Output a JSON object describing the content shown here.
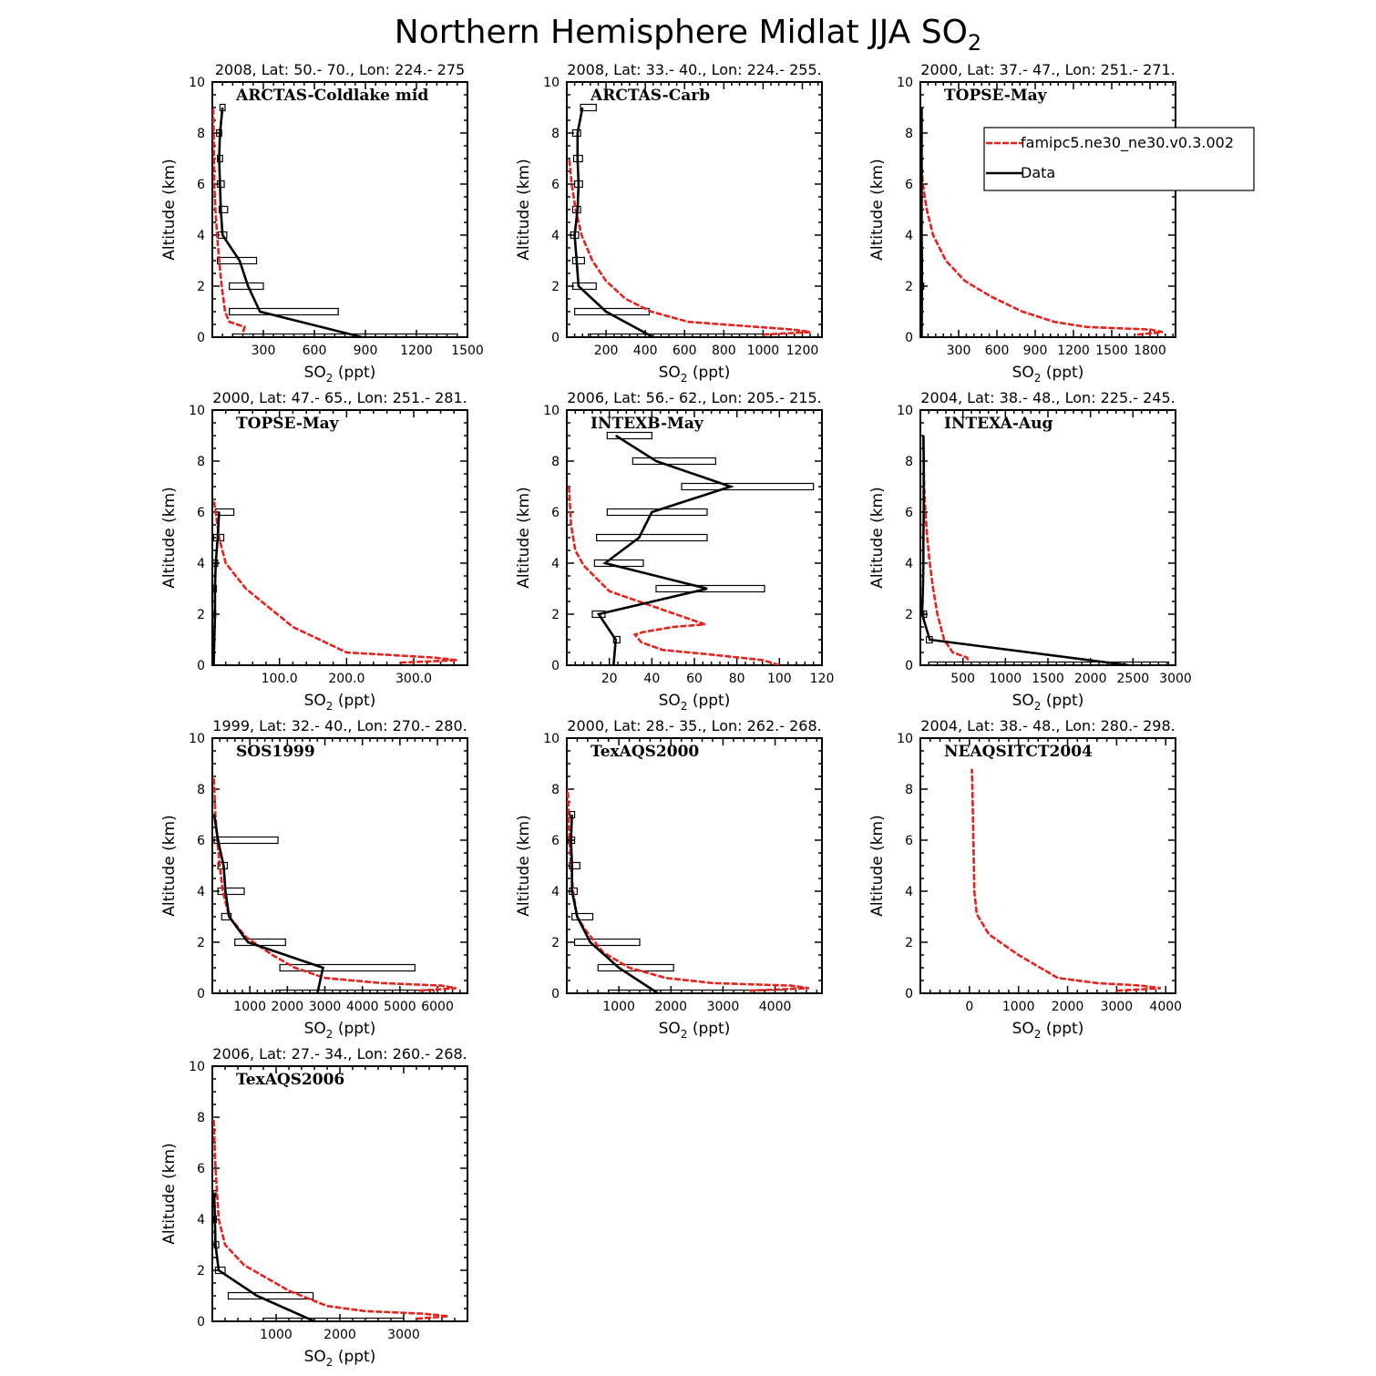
{
  "figure": {
    "title": "Northern Hemisphere Midlat JJA SO",
    "title_subscript": "2"
  },
  "legend": {
    "entries": [
      {
        "label": "famipc5.ne30_ne30.v0.3.002",
        "color": "#e8221b",
        "style": "dashed"
      },
      {
        "label": "Data",
        "color": "#000000",
        "style": "solid"
      }
    ]
  },
  "axes_text": {
    "ylabel": "Altitude (km)",
    "xlabel_main": "SO",
    "xlabel_sub": "2",
    "xlabel_tail": " (ppt)"
  },
  "colors": {
    "model": "#e8221b",
    "data": "#000000"
  },
  "chart_data": [
    {
      "type": "line",
      "subtitle": "2008, Lat:  50.- 70., Lon: 224.- 275",
      "campaign": "ARCTAS-Coldlake mid",
      "xlim": [
        0,
        1500
      ],
      "xticks": [
        300,
        600,
        900,
        1200,
        1500
      ],
      "xtick_labels": [
        "300",
        "600",
        "900",
        "1200",
        "1500"
      ],
      "ylim": [
        0,
        10
      ],
      "yticks": [
        0,
        2,
        4,
        6,
        8,
        10
      ],
      "model": {
        "x": [
          180,
          190,
          100,
          75,
          55,
          40,
          28,
          18,
          12,
          8,
          5
        ],
        "y": [
          0.2,
          0.4,
          0.6,
          1.0,
          2.0,
          3.0,
          4.0,
          5.0,
          6.0,
          8.0,
          9.0
        ]
      },
      "data": {
        "x": [
          880,
          280,
          210,
          160,
          60,
          50,
          45,
          40,
          45,
          60
        ],
        "y": [
          0,
          1,
          2,
          3,
          4,
          5,
          6,
          7,
          8,
          9
        ]
      },
      "boxes": [
        {
          "y": 0,
          "lo": 120,
          "hi": 1440
        },
        {
          "y": 1,
          "lo": 100,
          "hi": 740
        },
        {
          "y": 2,
          "lo": 100,
          "hi": 300
        },
        {
          "y": 3,
          "lo": 30,
          "hi": 260
        },
        {
          "y": 4,
          "lo": 35,
          "hi": 85
        },
        {
          "y": 5,
          "lo": 40,
          "hi": 90
        },
        {
          "y": 6,
          "lo": 30,
          "hi": 70
        },
        {
          "y": 7,
          "lo": 30,
          "hi": 60
        },
        {
          "y": 8,
          "lo": 25,
          "hi": 55
        },
        {
          "y": 9,
          "lo": 45,
          "hi": 75
        }
      ]
    },
    {
      "type": "line",
      "subtitle": "2008, Lat:  33.- 40., Lon: 224.- 255.",
      "campaign": "ARCTAS-Carb",
      "xlim": [
        0,
        1300
      ],
      "xticks": [
        200,
        400,
        600,
        800,
        1000,
        1200
      ],
      "xtick_labels": [
        "200",
        "400",
        "600",
        "800",
        "1000",
        "1200"
      ],
      "ylim": [
        0,
        10
      ],
      "yticks": [
        0,
        2,
        4,
        6,
        8,
        10
      ],
      "model": {
        "x": [
          1000,
          1240,
          1150,
          620,
          430,
          300,
          200,
          130,
          75,
          45,
          25,
          12
        ],
        "y": [
          0.1,
          0.2,
          0.3,
          0.6,
          1.0,
          1.5,
          2.2,
          3.0,
          4.0,
          5.0,
          6.0,
          7.0
        ]
      },
      "data": {
        "x": [
          440,
          200,
          60,
          50,
          40,
          55,
          60,
          55,
          55,
          80
        ],
        "y": [
          0,
          1,
          2,
          3,
          4,
          5,
          6,
          7,
          8,
          9
        ]
      },
      "boxes": [
        {
          "y": 0,
          "lo": 110,
          "hi": 1000
        },
        {
          "y": 1,
          "lo": 40,
          "hi": 420
        },
        {
          "y": 2,
          "lo": 30,
          "hi": 150
        },
        {
          "y": 3,
          "lo": 30,
          "hi": 90
        },
        {
          "y": 4,
          "lo": 20,
          "hi": 60
        },
        {
          "y": 5,
          "lo": 30,
          "hi": 70
        },
        {
          "y": 6,
          "lo": 40,
          "hi": 80
        },
        {
          "y": 7,
          "lo": 35,
          "hi": 80
        },
        {
          "y": 8,
          "lo": 30,
          "hi": 70
        },
        {
          "y": 9,
          "lo": 70,
          "hi": 150
        }
      ]
    },
    {
      "type": "line",
      "subtitle": "2000, Lat: 37.- 47., Lon: 251.- 271.",
      "campaign": "TOPSE-May",
      "xlim": [
        0,
        2000
      ],
      "xticks": [
        300,
        600,
        900,
        1200,
        1500,
        1800
      ],
      "xtick_labels": [
        "300",
        "600",
        "900",
        "1200",
        "1500",
        "1800"
      ],
      "ylim": [
        0,
        10
      ],
      "yticks": [
        0,
        2,
        4,
        6,
        8,
        10
      ],
      "model": {
        "x": [
          1700,
          1900,
          1800,
          1300,
          1050,
          800,
          550,
          350,
          200,
          100,
          50,
          20,
          5
        ],
        "y": [
          0.1,
          0.2,
          0.3,
          0.4,
          0.6,
          1.0,
          1.6,
          2.2,
          3.0,
          4.0,
          5.0,
          6.0,
          7.0
        ]
      },
      "data": {
        "x": [
          10,
          12,
          12,
          10,
          10,
          10,
          10,
          10,
          10
        ],
        "y": [
          0,
          2,
          3,
          4,
          5,
          6,
          7,
          8,
          9
        ]
      },
      "boxes": [
        {
          "y": 2,
          "lo": 5,
          "hi": 20
        }
      ]
    },
    {
      "type": "line",
      "subtitle": "2000, Lat: 47.- 65., Lon: 251.- 281.",
      "campaign": "TOPSE-May",
      "xlim": [
        0,
        380
      ],
      "xticks": [
        100,
        200,
        300
      ],
      "xtick_labels": [
        "100.0",
        "200.0",
        "300.0"
      ],
      "ylim": [
        0,
        10
      ],
      "yticks": [
        0,
        2,
        4,
        6,
        8,
        10
      ],
      "model": {
        "x": [
          280,
          365,
          330,
          200,
          120,
          50,
          20,
          10,
          5,
          2
        ],
        "y": [
          0.1,
          0.2,
          0.3,
          0.5,
          1.5,
          3.0,
          4.0,
          5.0,
          6.0,
          6.5
        ]
      },
      "data": {
        "x": [
          2,
          3,
          4,
          4,
          5,
          8,
          10
        ],
        "y": [
          0,
          1,
          2,
          3,
          4,
          5,
          6
        ]
      },
      "boxes": [
        {
          "y": 2,
          "lo": 1,
          "hi": 5
        },
        {
          "y": 3,
          "lo": 1,
          "hi": 6
        },
        {
          "y": 4,
          "lo": 1,
          "hi": 8
        },
        {
          "y": 5,
          "lo": 2,
          "hi": 17
        },
        {
          "y": 6,
          "lo": 5,
          "hi": 32
        }
      ]
    },
    {
      "type": "line",
      "subtitle": "2006, Lat: 56.- 62., Lon: 205.- 215.",
      "campaign": "INTEXB-May",
      "xlim": [
        0,
        120
      ],
      "xticks": [
        20,
        40,
        60,
        80,
        100,
        120
      ],
      "xtick_labels": [
        "20",
        "40",
        "60",
        "80",
        "100",
        "120"
      ],
      "ylim": [
        0,
        10
      ],
      "yticks": [
        0,
        2,
        4,
        6,
        8,
        10
      ],
      "model": {
        "x": [
          100,
          92,
          70,
          45,
          35,
          32,
          36,
          50,
          65,
          20,
          8,
          4,
          2,
          1
        ],
        "y": [
          0.0,
          0.2,
          0.4,
          0.6,
          0.9,
          1.2,
          1.3,
          1.5,
          1.6,
          2.9,
          3.9,
          4.5,
          5.5,
          7.0
        ]
      },
      "data": {
        "x": [
          22,
          23,
          15,
          66,
          18,
          34,
          40,
          77,
          42,
          23
        ],
        "y": [
          0,
          1,
          2,
          3,
          4,
          5,
          6,
          7,
          8,
          9
        ]
      },
      "boxes": [
        {
          "y": 1,
          "lo": 22,
          "hi": 25
        },
        {
          "y": 2,
          "lo": 12,
          "hi": 18
        },
        {
          "y": 3,
          "lo": 42,
          "hi": 93
        },
        {
          "y": 4,
          "lo": 13,
          "hi": 36
        },
        {
          "y": 5,
          "lo": 14,
          "hi": 66
        },
        {
          "y": 6,
          "lo": 19,
          "hi": 66
        },
        {
          "y": 7,
          "lo": 54,
          "hi": 116
        },
        {
          "y": 8,
          "lo": 31,
          "hi": 70
        },
        {
          "y": 9,
          "lo": 19,
          "hi": 40
        }
      ]
    },
    {
      "type": "line",
      "subtitle": "2004, Lat: 38.- 48., Lon: 225.- 245.",
      "campaign": "INTEXA-Aug",
      "xlim": [
        0,
        3000
      ],
      "xticks": [
        500,
        1000,
        1500,
        2000,
        2500,
        3000
      ],
      "xtick_labels": [
        "500",
        "1000",
        "1500",
        "2000",
        "2500",
        "3000"
      ],
      "ylim": [
        0,
        10
      ],
      "yticks": [
        0,
        2,
        4,
        6,
        8,
        10
      ],
      "model": {
        "x": [
          560,
          550,
          380,
          280,
          200,
          150,
          110,
          80,
          60,
          45,
          40,
          35
        ],
        "y": [
          0.2,
          0.3,
          0.5,
          1.0,
          2.0,
          3.0,
          4.0,
          5.0,
          6.0,
          7.0,
          8.0,
          9.0
        ]
      },
      "data": {
        "x": [
          2450,
          110,
          20,
          30,
          35,
          35,
          40,
          40,
          40,
          35
        ],
        "y": [
          0,
          1,
          2,
          3,
          4,
          5,
          6,
          7,
          8,
          9
        ]
      },
      "boxes": [
        {
          "y": 0,
          "lo": 100,
          "hi": 2920
        },
        {
          "y": 1,
          "lo": 70,
          "hi": 140
        },
        {
          "y": 2,
          "lo": 40,
          "hi": 70
        }
      ]
    },
    {
      "type": "line",
      "subtitle": "1999, Lat: 32.- 40., Lon: 270.- 280.",
      "campaign": "SOS1999",
      "xlim": [
        0,
        6800
      ],
      "xticks": [
        1000,
        2000,
        3000,
        4000,
        5000,
        6000
      ],
      "xtick_labels": [
        "1000",
        "2000",
        "3000",
        "4000",
        "5000",
        "6000"
      ],
      "ylim": [
        0,
        10
      ],
      "yticks": [
        0,
        2,
        4,
        6,
        8,
        10
      ],
      "model": {
        "x": [
          5500,
          6500,
          6100,
          4500,
          3000,
          2200,
          1600,
          900,
          450,
          280,
          200,
          130,
          80,
          40
        ],
        "y": [
          0.1,
          0.2,
          0.3,
          0.4,
          0.6,
          1.0,
          1.5,
          2.2,
          3.0,
          4.0,
          5.0,
          6.0,
          7.0,
          8.5
        ]
      },
      "data": {
        "x": [
          2800,
          2950,
          950,
          450,
          350,
          300,
          150,
          50
        ],
        "y": [
          0,
          1,
          2,
          3,
          4,
          5,
          6,
          7
        ]
      },
      "boxes": [
        {
          "y": 0,
          "lo": 1700,
          "hi": 5900
        },
        {
          "y": 1,
          "lo": 1800,
          "hi": 5400
        },
        {
          "y": 2,
          "lo": 600,
          "hi": 1950
        },
        {
          "y": 3,
          "lo": 250,
          "hi": 500
        },
        {
          "y": 4,
          "lo": 150,
          "hi": 850
        },
        {
          "y": 5,
          "lo": 150,
          "hi": 400
        },
        {
          "y": 6,
          "lo": 50,
          "hi": 1750
        }
      ]
    },
    {
      "type": "line",
      "subtitle": "2000, Lat: 28.- 35., Lon: 262.- 268.",
      "campaign": "TexAQS2000",
      "xlim": [
        0,
        4900
      ],
      "xticks": [
        1000,
        2000,
        3000,
        4000
      ],
      "xtick_labels": [
        "1000",
        "2000",
        "3000",
        "4000"
      ],
      "ylim": [
        0,
        10
      ],
      "yticks": [
        0,
        2,
        4,
        6,
        8,
        10
      ],
      "model": {
        "x": [
          3500,
          4650,
          4300,
          2800,
          1900,
          1200,
          700,
          350,
          200,
          120,
          80,
          40,
          20
        ],
        "y": [
          0.1,
          0.2,
          0.3,
          0.4,
          0.6,
          1.0,
          1.6,
          2.5,
          3.0,
          4.0,
          5.0,
          6.5,
          8.0
        ]
      },
      "data": {
        "x": [
          1750,
          1000,
          450,
          200,
          100,
          100,
          80,
          100
        ],
        "y": [
          0,
          1,
          2,
          3,
          4,
          5,
          6,
          7
        ]
      },
      "boxes": [
        {
          "y": 0,
          "lo": 800,
          "hi": 4200
        },
        {
          "y": 1,
          "lo": 600,
          "hi": 2050
        },
        {
          "y": 2,
          "lo": 150,
          "hi": 1400
        },
        {
          "y": 3,
          "lo": 100,
          "hi": 500
        },
        {
          "y": 4,
          "lo": 50,
          "hi": 200
        },
        {
          "y": 5,
          "lo": 50,
          "hi": 250
        },
        {
          "y": 6,
          "lo": 30,
          "hi": 150
        },
        {
          "y": 7,
          "lo": 60,
          "hi": 150
        }
      ]
    },
    {
      "type": "line",
      "subtitle": "2004, Lat: 38.- 48., Lon: 280.- 298.",
      "campaign": "NEAQSITCT2004",
      "xlim": [
        -1000,
        4200
      ],
      "xticks": [
        0,
        1000,
        2000,
        3000,
        4000
      ],
      "xtick_labels": [
        "0",
        "1000",
        "2000",
        "3000",
        "4000"
      ],
      "ylim": [
        0,
        10
      ],
      "yticks": [
        0,
        2,
        4,
        6,
        8,
        10
      ],
      "model": {
        "x": [
          3000,
          3900,
          3500,
          2600,
          1800,
          1000,
          400,
          150,
          100,
          80,
          60,
          50
        ],
        "y": [
          0.1,
          0.2,
          0.3,
          0.4,
          0.6,
          1.5,
          2.3,
          3.1,
          4.0,
          6.0,
          8.0,
          8.8
        ]
      },
      "data": {
        "x": [],
        "y": []
      },
      "boxes": []
    },
    {
      "type": "line",
      "subtitle": "2006, Lat: 27.- 34., Lon: 260.- 268.",
      "campaign": "TexAQS2006",
      "xlim": [
        0,
        4000
      ],
      "xticks": [
        1000,
        2000,
        3000
      ],
      "xtick_labels": [
        "1000",
        "2000",
        "3000"
      ],
      "ylim": [
        0,
        10
      ],
      "yticks": [
        0,
        2,
        4,
        6,
        8,
        10
      ],
      "model": {
        "x": [
          3200,
          3700,
          3300,
          2400,
          1800,
          1200,
          500,
          200,
          100,
          50,
          20
        ],
        "y": [
          0.1,
          0.2,
          0.3,
          0.4,
          0.6,
          1.2,
          2.2,
          3.0,
          4.0,
          6.0,
          8.0
        ]
      },
      "data": {
        "x": [
          1600,
          700,
          100,
          50,
          40,
          30
        ],
        "y": [
          0,
          1,
          2,
          3,
          4,
          5
        ]
      },
      "boxes": [
        {
          "y": 0,
          "lo": 800,
          "hi": 3000
        },
        {
          "y": 1,
          "lo": 250,
          "hi": 1580
        },
        {
          "y": 2,
          "lo": 50,
          "hi": 200
        },
        {
          "y": 3,
          "lo": 30,
          "hi": 100
        },
        {
          "y": 4,
          "lo": 20,
          "hi": 60
        },
        {
          "y": 5,
          "lo": 15,
          "hi": 40
        }
      ]
    }
  ]
}
